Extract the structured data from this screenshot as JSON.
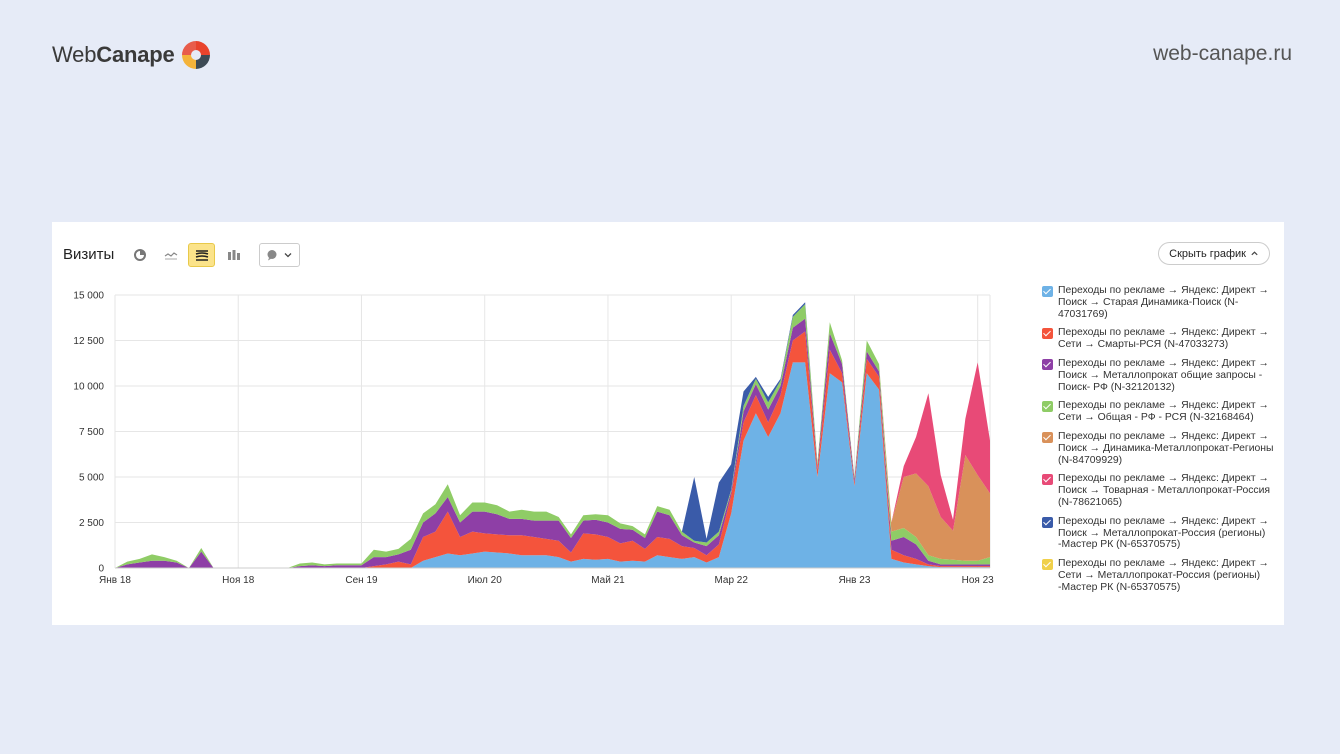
{
  "header": {
    "logo_part1": "Web",
    "logo_part2": "Canape",
    "site_url": "web-canape.ru"
  },
  "panel": {
    "title": "Визиты",
    "hide_chart_label": "Скрыть график",
    "toolbar_icons": [
      "pie-chart-icon",
      "line-chart-icon",
      "stacked-area-icon",
      "stacked-bar-icon",
      "comment-icon"
    ]
  },
  "colors": {
    "s1": "#6eb2e6",
    "s2": "#f4543c",
    "s3": "#8e3fa6",
    "s4": "#8fcc66",
    "s5": "#d9915a",
    "s6": "#e84a77",
    "s7": "#3a5ba9",
    "s8": "#f0d04a"
  },
  "chart_data": {
    "type": "area",
    "stacked": true,
    "title": "Визиты",
    "ylim": [
      0,
      15000
    ],
    "yticks": [
      0,
      2500,
      5000,
      7500,
      10000,
      12500,
      15000
    ],
    "ytick_labels": [
      "0",
      "2 500",
      "5 000",
      "7 500",
      "10 000",
      "12 500",
      "15 000"
    ],
    "xticks": [
      {
        "index": 0,
        "label": "Янв 18"
      },
      {
        "index": 10,
        "label": "Ноя 18"
      },
      {
        "index": 20,
        "label": "Сен 19"
      },
      {
        "index": 30,
        "label": "Июл 20"
      },
      {
        "index": 40,
        "label": "Май 21"
      },
      {
        "index": 50,
        "label": "Мар 22"
      },
      {
        "index": 60,
        "label": "Янв 23"
      },
      {
        "index": 70,
        "label": "Ноя 23"
      }
    ],
    "x_count": 72,
    "series": [
      {
        "name": "Переходы по рекламе → Яндекс: Директ → Поиск → Старая Динамика-Поиск (N-47031769)",
        "color_key": "s1",
        "values": [
          0,
          0,
          0,
          0,
          0,
          0,
          0,
          0,
          0,
          0,
          0,
          0,
          0,
          0,
          0,
          0,
          0,
          0,
          0,
          0,
          0,
          0,
          0,
          0,
          0,
          400,
          600,
          800,
          700,
          800,
          900,
          850,
          800,
          700,
          700,
          700,
          600,
          350,
          500,
          450,
          500,
          350,
          400,
          350,
          700,
          600,
          500,
          600,
          300,
          600,
          3000,
          7000,
          8500,
          7200,
          8500,
          11300,
          11300,
          5000,
          10700,
          10200,
          4500,
          10700,
          9800,
          500,
          300,
          200,
          100,
          50,
          50,
          50,
          50,
          50
        ]
      },
      {
        "name": "Переходы по рекламе → Яндекс: Директ → Сети → Смарты-РСЯ (N-47033273)",
        "color_key": "s2",
        "values": [
          0,
          0,
          0,
          0,
          0,
          0,
          0,
          0,
          0,
          0,
          0,
          0,
          0,
          0,
          0,
          0,
          0,
          0,
          0,
          0,
          0,
          100,
          200,
          350,
          200,
          1300,
          1400,
          2300,
          1000,
          1200,
          1000,
          1000,
          1000,
          1100,
          1000,
          900,
          900,
          500,
          1400,
          1400,
          1200,
          1000,
          1100,
          700,
          1000,
          1000,
          700,
          500,
          400,
          700,
          1000,
          1000,
          1000,
          800,
          1000,
          1200,
          1700,
          400,
          1300,
          500,
          200,
          800,
          700,
          500,
          400,
          300,
          100,
          50,
          50,
          50,
          50,
          50
        ]
      },
      {
        "name": "Переходы по рекламе → Яндекс: Директ → Поиск → Металлопрокат общие запросы - Поиск- РФ (N-32120132)",
        "color_key": "s3",
        "values": [
          0,
          200,
          300,
          400,
          400,
          300,
          0,
          900,
          0,
          0,
          0,
          0,
          0,
          0,
          0,
          100,
          150,
          100,
          150,
          150,
          150,
          500,
          400,
          400,
          800,
          800,
          1000,
          800,
          800,
          1100,
          1200,
          1100,
          900,
          900,
          900,
          1000,
          1100,
          800,
          700,
          800,
          800,
          800,
          600,
          600,
          1400,
          1300,
          600,
          300,
          500,
          500,
          200,
          600,
          600,
          700,
          500,
          700,
          700,
          200,
          900,
          500,
          200,
          400,
          300,
          500,
          1000,
          800,
          200,
          100,
          100,
          100,
          100,
          100
        ]
      },
      {
        "name": "Переходы по рекламе → Яндекс: Директ → Сети → Общая - РФ - РСЯ (N-32168464)",
        "color_key": "s4",
        "values": [
          0,
          150,
          200,
          350,
          200,
          100,
          0,
          200,
          0,
          0,
          0,
          0,
          0,
          0,
          0,
          150,
          150,
          100,
          100,
          100,
          100,
          400,
          300,
          300,
          600,
          500,
          500,
          700,
          400,
          500,
          500,
          500,
          400,
          500,
          500,
          500,
          200,
          200,
          300,
          300,
          400,
          300,
          200,
          200,
          300,
          300,
          200,
          100,
          200,
          200,
          100,
          300,
          300,
          400,
          300,
          600,
          800,
          200,
          600,
          200,
          100,
          600,
          400,
          500,
          500,
          400,
          300,
          300,
          250,
          200,
          200,
          400
        ]
      },
      {
        "name": "Переходы по рекламе → Яндекс: Директ → Поиск → Динамика-Металлопрокат-Регионы (N-84709929)",
        "color_key": "s5",
        "values": [
          0,
          0,
          0,
          0,
          0,
          0,
          0,
          0,
          0,
          0,
          0,
          0,
          0,
          0,
          0,
          0,
          0,
          0,
          0,
          0,
          0,
          0,
          0,
          0,
          0,
          0,
          0,
          0,
          0,
          0,
          0,
          0,
          0,
          0,
          0,
          0,
          0,
          0,
          0,
          0,
          0,
          0,
          0,
          0,
          0,
          0,
          0,
          0,
          0,
          0,
          0,
          0,
          0,
          0,
          0,
          0,
          0,
          0,
          0,
          0,
          0,
          0,
          0,
          500,
          2800,
          3500,
          3800,
          2300,
          1600,
          5800,
          4700,
          3500
        ]
      },
      {
        "name": "Переходы по рекламе → Яндекс: Директ → Поиск → Товарная - Металлопрокат-Россия (N-78621065)",
        "color_key": "s6",
        "values": [
          0,
          0,
          0,
          0,
          0,
          0,
          0,
          0,
          0,
          0,
          0,
          0,
          0,
          0,
          0,
          0,
          0,
          0,
          0,
          0,
          0,
          0,
          0,
          0,
          0,
          0,
          0,
          0,
          0,
          0,
          0,
          0,
          0,
          0,
          0,
          0,
          0,
          0,
          0,
          0,
          0,
          0,
          0,
          0,
          0,
          0,
          0,
          0,
          0,
          0,
          0,
          0,
          0,
          0,
          0,
          0,
          0,
          0,
          0,
          0,
          0,
          0,
          0,
          0,
          600,
          2000,
          5100,
          2300,
          600,
          2000,
          6200,
          2900
        ]
      },
      {
        "name": "Переходы по рекламе → Яндекс: Директ → Поиск → Металлопрокат-Россия (регионы) -Мастер РК (N-65370575)",
        "color_key": "s7",
        "values": [
          0,
          0,
          0,
          0,
          0,
          0,
          0,
          0,
          0,
          0,
          0,
          0,
          0,
          0,
          0,
          0,
          0,
          0,
          0,
          0,
          0,
          0,
          0,
          0,
          0,
          0,
          0,
          0,
          0,
          0,
          0,
          0,
          0,
          0,
          0,
          0,
          0,
          0,
          0,
          0,
          0,
          0,
          0,
          0,
          0,
          0,
          0,
          3500,
          200,
          2700,
          1400,
          800,
          100,
          300,
          100,
          100,
          100,
          0,
          0,
          0,
          0,
          0,
          0,
          0,
          0,
          0,
          0,
          0,
          0,
          0,
          0,
          0
        ]
      },
      {
        "name": "Переходы по рекламе → Яндекс: Директ → Сети → Металлопрокат-Россия (регионы) -Мастер РК (N-65370575)",
        "color_key": "s8",
        "values": [
          0,
          0,
          0,
          0,
          0,
          0,
          0,
          0,
          0,
          0,
          0,
          0,
          0,
          0,
          0,
          0,
          0,
          0,
          0,
          0,
          0,
          0,
          0,
          0,
          0,
          0,
          0,
          0,
          0,
          0,
          0,
          0,
          0,
          0,
          0,
          0,
          0,
          0,
          0,
          0,
          0,
          0,
          0,
          0,
          0,
          0,
          0,
          0,
          0,
          0,
          0,
          0,
          0,
          0,
          0,
          0,
          0,
          0,
          0,
          0,
          0,
          0,
          0,
          0,
          0,
          0,
          0,
          0,
          0,
          0,
          0,
          0
        ]
      }
    ],
    "legend_position": "right"
  }
}
